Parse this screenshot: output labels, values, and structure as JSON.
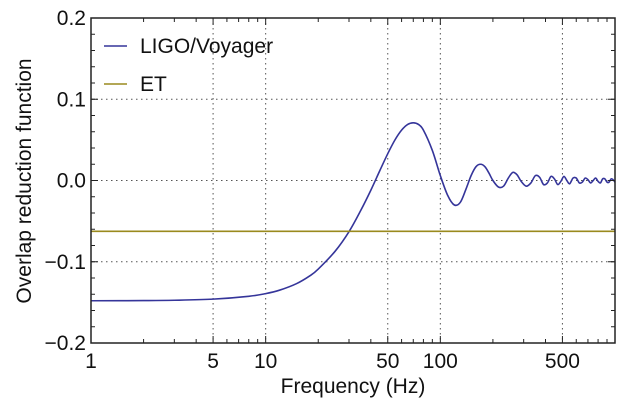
{
  "chart_data": {
    "type": "line",
    "title": "",
    "xlabel": "Frequency (Hz)",
    "ylabel": "Overlap reduction function",
    "x_scale": "log",
    "xlim": [
      1,
      1000
    ],
    "ylim": [
      -0.2,
      0.2
    ],
    "grid": true,
    "legend_position": "top-left",
    "x_ticks": [
      {
        "value": 1,
        "label": "1"
      },
      {
        "value": 5,
        "label": "5"
      },
      {
        "value": 10,
        "label": "10"
      },
      {
        "value": 50,
        "label": "50"
      },
      {
        "value": 100,
        "label": "100"
      },
      {
        "value": 500,
        "label": "500"
      }
    ],
    "y_ticks": [
      {
        "value": -0.2,
        "label": "−0.2"
      },
      {
        "value": -0.1,
        "label": "−0.1"
      },
      {
        "value": 0.0,
        "label": "0.0"
      },
      {
        "value": 0.1,
        "label": "0.1"
      },
      {
        "value": 0.2,
        "label": "0.2"
      }
    ],
    "series": [
      {
        "name": "LIGO/Voyager",
        "color": "#35359a",
        "x": [
          1,
          2,
          3,
          5,
          8,
          10,
          12,
          15,
          18,
          20,
          25,
          30,
          35,
          40,
          45,
          50,
          55,
          60,
          65,
          70,
          75,
          80,
          90,
          100,
          110,
          120,
          130,
          140,
          150,
          160,
          170,
          180,
          190,
          200,
          215,
          230,
          245,
          260,
          275,
          290,
          310,
          330,
          350,
          370,
          390,
          410,
          430,
          450,
          470,
          490,
          510,
          530,
          550,
          575,
          600,
          625,
          650,
          675,
          700,
          725,
          750,
          775,
          800,
          825,
          850,
          875,
          900,
          925,
          950,
          975,
          1000
        ],
        "y": [
          -0.148,
          -0.1478,
          -0.1474,
          -0.146,
          -0.1425,
          -0.1392,
          -0.135,
          -0.127,
          -0.117,
          -0.109,
          -0.087,
          -0.063,
          -0.037,
          -0.012,
          0.012,
          0.033,
          0.05,
          0.062,
          0.069,
          0.071,
          0.069,
          0.062,
          0.037,
          0.006,
          -0.018,
          -0.03,
          -0.027,
          -0.011,
          0.006,
          0.017,
          0.02,
          0.017,
          0.009,
          0.0,
          -0.008,
          -0.007,
          0.003,
          0.01,
          0.007,
          -0.001,
          -0.007,
          -0.003,
          0.006,
          0.004,
          -0.005,
          -0.003,
          0.005,
          0.002,
          -0.005,
          -0.001,
          0.005,
          0.0,
          -0.004,
          0.003,
          0.003,
          -0.003,
          -0.002,
          0.003,
          0.001,
          -0.003,
          0.0,
          0.003,
          -0.001,
          -0.003,
          0.002,
          0.002,
          -0.002,
          -0.002,
          0.002,
          0.001,
          -0.002
        ]
      },
      {
        "name": "ET",
        "color": "#9a8a1e",
        "x": [
          1,
          1000
        ],
        "y": [
          -0.0625,
          -0.0625
        ]
      }
    ]
  }
}
